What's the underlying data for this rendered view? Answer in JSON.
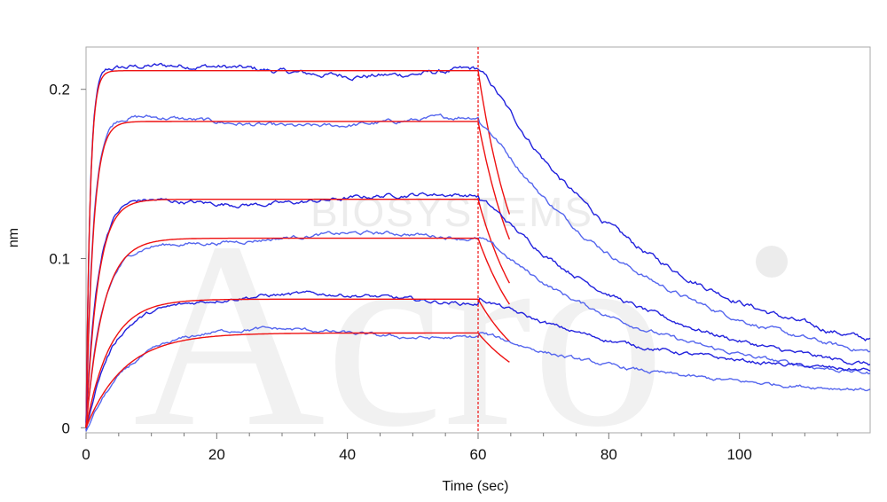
{
  "chart_data": {
    "type": "line",
    "xlabel": "Time (sec)",
    "ylabel": "nm",
    "xlim": [
      0,
      120
    ],
    "ylim": [
      -0.003,
      0.225
    ],
    "x_ticks": [
      0,
      20,
      40,
      60,
      80,
      100
    ],
    "y_ticks": [
      0,
      0.1,
      0.2
    ],
    "x_tick_labels": [
      "0",
      "20",
      "40",
      "60",
      "80",
      "100"
    ],
    "y_tick_labels": [
      "0",
      "0.1",
      "0.2"
    ],
    "grid": false,
    "legend": "none",
    "colors": {
      "measured": "#2222dd",
      "measured_light": "#5566ee",
      "fit": "#ee1111",
      "axis": "#888888"
    },
    "association_end": 60,
    "dissociation_fit_end": 65,
    "series": [
      {
        "plateau": 0.211,
        "kon_rate": 1.6,
        "koff_rate": 0.16,
        "fast_frac": 0.55,
        "end_level": 0.03,
        "noise": 0.0022
      },
      {
        "plateau": 0.181,
        "kon_rate": 0.9,
        "koff_rate": 0.15,
        "fast_frac": 0.57,
        "end_level": 0.026,
        "noise": 0.0018
      },
      {
        "plateau": 0.135,
        "kon_rate": 0.55,
        "koff_rate": 0.14,
        "fast_frac": 0.6,
        "end_level": 0.024,
        "noise": 0.0018
      },
      {
        "plateau": 0.112,
        "kon_rate": 0.38,
        "koff_rate": 0.13,
        "fast_frac": 0.55,
        "end_level": 0.021,
        "noise": 0.0016
      },
      {
        "plateau": 0.076,
        "kon_rate": 0.27,
        "koff_rate": 0.12,
        "fast_frac": 0.45,
        "end_level": 0.028,
        "noise": 0.0016
      },
      {
        "plateau": 0.056,
        "kon_rate": 0.17,
        "koff_rate": 0.11,
        "fast_frac": 0.4,
        "end_level": 0.018,
        "noise": 0.0015
      }
    ],
    "watermark": {
      "logo": "Acro",
      "text": "BIOSYSTEMS"
    }
  }
}
